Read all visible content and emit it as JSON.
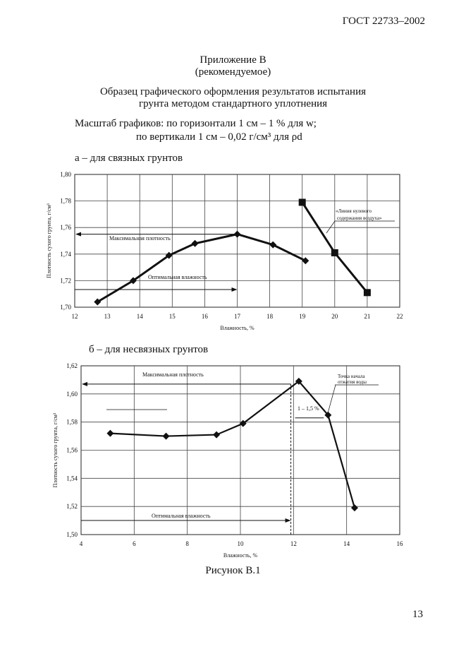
{
  "header": {
    "standard": "ГОСТ 22733–2002"
  },
  "appendix": {
    "title": "Приложение В",
    "note": "(рекомендуемое)"
  },
  "heading": {
    "line1": "Образец графического оформления результатов испытания",
    "line2": "грунта методом стандартного уплотнения"
  },
  "scale": {
    "line1": "Масштаб графиков: по горизонтали 1 см – 1 % для w;",
    "line2": "по вертикали 1 см  – 0,02 г/см³ для ρd"
  },
  "figure": {
    "caption": "Рисунок В.1",
    "page_number": "13"
  },
  "chart_data": [
    {
      "type": "line",
      "title": "а – для связных грунтов",
      "xlabel": "Влажность,  %",
      "ylabel": "Плотность сухого грунта, г/см³",
      "xlim": [
        12,
        22
      ],
      "ylim": [
        1.7,
        1.8
      ],
      "grid": true,
      "xticks": [
        "12",
        "13",
        "14",
        "15",
        "16",
        "17",
        "18",
        "19",
        "20",
        "21",
        "22"
      ],
      "yticks": [
        "1,70",
        "1,72",
        "1,74",
        "1,76",
        "1,78",
        "1,80"
      ],
      "series": [
        {
          "marker": "diamond",
          "x": [
            12.7,
            13.8,
            14.9,
            15.7,
            17.0,
            18.1,
            19.1
          ],
          "y": [
            1.704,
            1.72,
            1.739,
            1.748,
            1.755,
            1.747,
            1.735
          ]
        },
        {
          "marker": "square",
          "x": [
            19,
            20,
            21
          ],
          "y": [
            1.779,
            1.741,
            1.711
          ]
        }
      ],
      "annotations": {
        "max_density": "Максимальная плотность",
        "opt_moisture": "Оптимальная влажность",
        "zero_air": "«Линия нулевого",
        "zero_air2": "содержания воздуха»"
      },
      "max_density_value": 1.755,
      "opt_moisture_value": 17.0
    },
    {
      "type": "line",
      "title": "б – для несвязных грунтов",
      "xlabel": "Влажность,  %",
      "ylabel": "Плотность сухого грунта, г/см³",
      "xlim": [
        4,
        16
      ],
      "ylim": [
        1.5,
        1.62
      ],
      "grid": true,
      "xticks": [
        "4",
        "6",
        "8",
        "10",
        "12",
        "14",
        "16"
      ],
      "yticks": [
        "1,50",
        "1,52",
        "1,54",
        "1,56",
        "1,58",
        "1,60",
        "1,62"
      ],
      "series": [
        {
          "marker": "diamond",
          "x": [
            5.1,
            7.2,
            9.1,
            10.1,
            12.2,
            13.3,
            14.3
          ],
          "y": [
            1.572,
            1.57,
            1.571,
            1.579,
            1.609,
            1.585,
            1.519
          ]
        }
      ],
      "annotations": {
        "max_density": "Максимальная плотность",
        "opt_moisture": "Оптимальная влажность",
        "range": "1 – 1,5 %",
        "water_point": "Точка начала",
        "water_point2": "отжатия воды"
      },
      "max_density_value": 1.607,
      "opt_moisture_value": 11.9
    }
  ]
}
